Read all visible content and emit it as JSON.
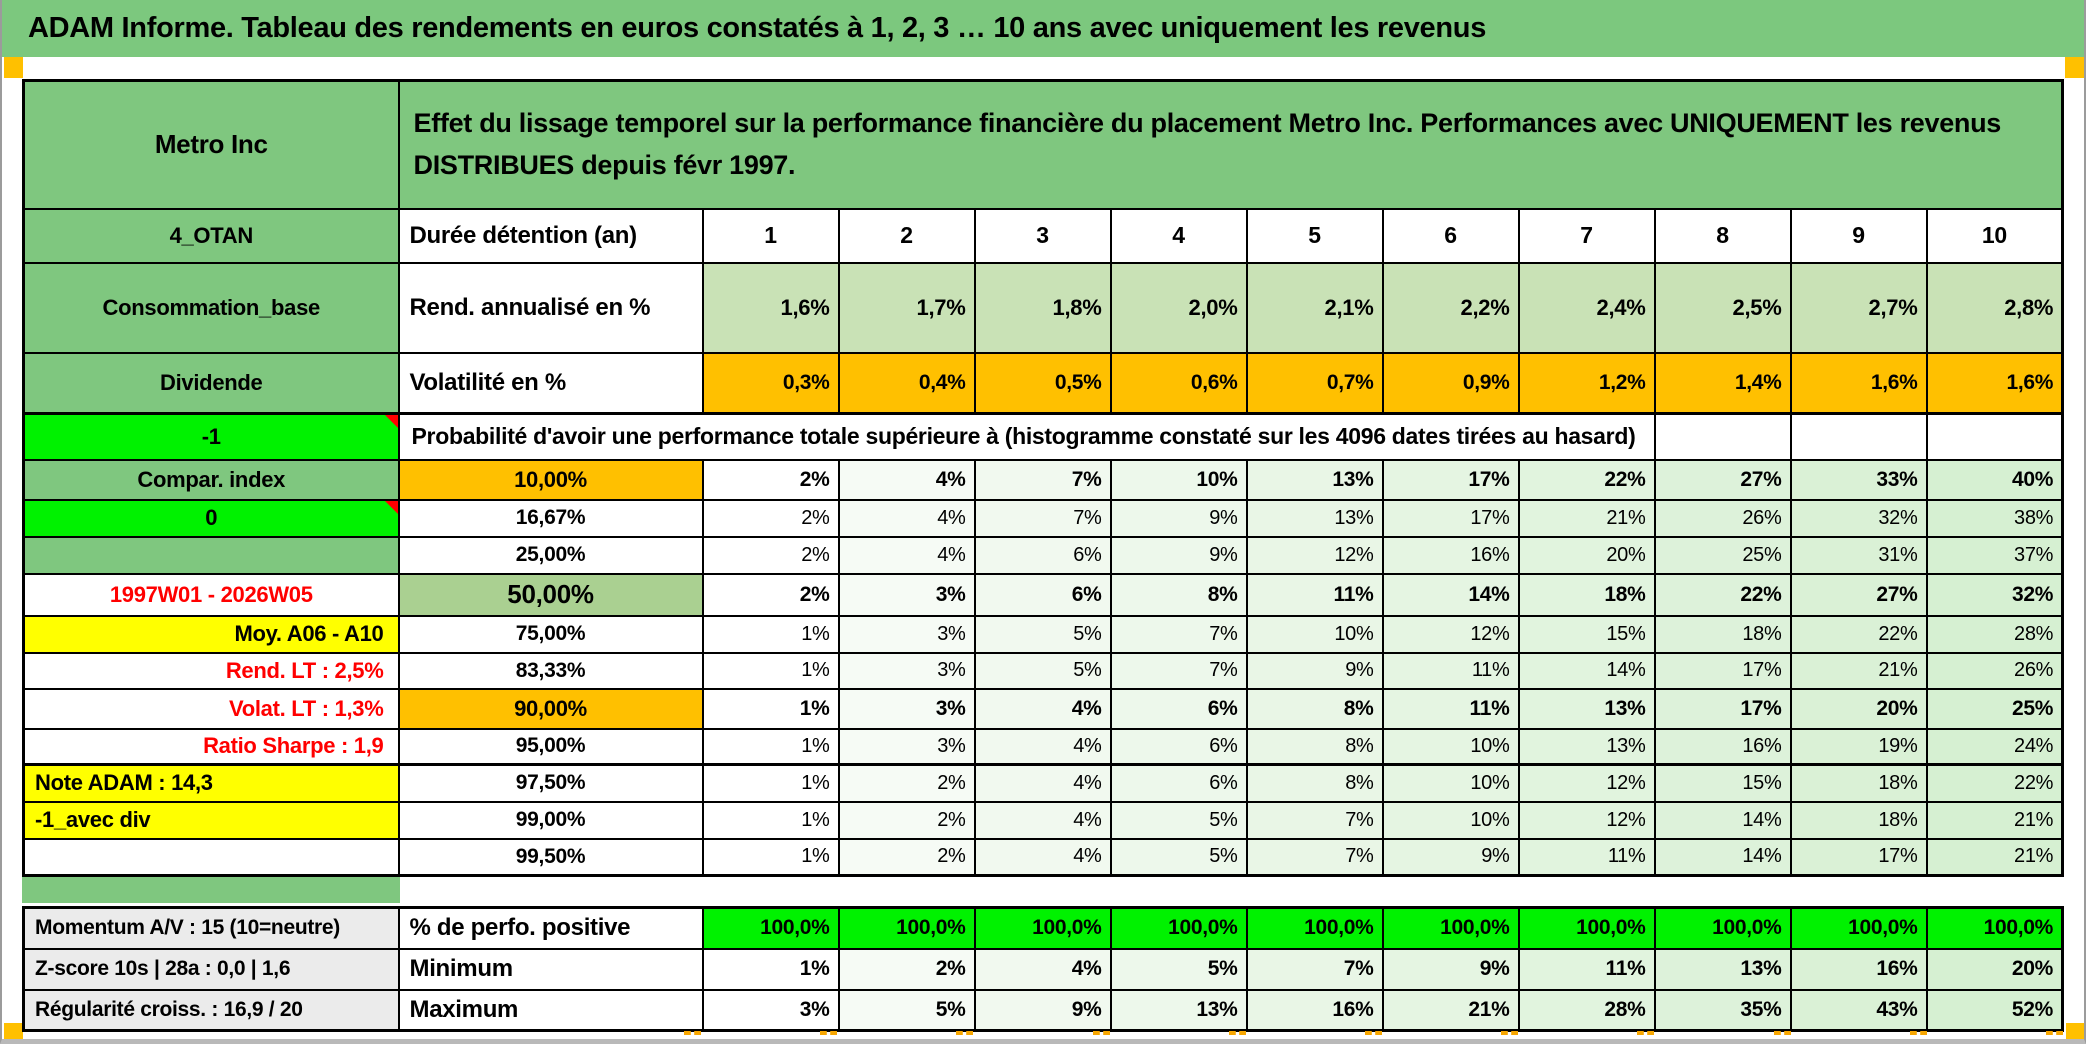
{
  "banner": {
    "title": "ADAM Informe. Tableau des rendements en euros constatés à 1, 2, 3 … 10 ans avec uniquement les revenus"
  },
  "main_table": {
    "company": "Metro Inc",
    "description": "Effet du lissage temporel sur la performance financière du placement Metro Inc. Performances avec UNIQUEMENT les revenus DISTRIBUES depuis févr 1997.",
    "years_row": {
      "label_a": "4_OTAN",
      "label_b": "Durée détention (an)",
      "years": [
        "1",
        "2",
        "3",
        "4",
        "5",
        "6",
        "7",
        "8",
        "9",
        "10"
      ]
    },
    "annualized_return_row": {
      "label_a": "Consommation_base",
      "label_b": "Rend. annualisé en %",
      "values": [
        "1,6%",
        "1,7%",
        "1,8%",
        "2,0%",
        "2,1%",
        "2,2%",
        "2,4%",
        "2,5%",
        "2,7%",
        "2,8%"
      ]
    },
    "volatility_row": {
      "label_a": "Dividende",
      "label_b": "Volatilité en %",
      "values": [
        "0,3%",
        "0,4%",
        "0,5%",
        "0,6%",
        "0,7%",
        "0,9%",
        "1,2%",
        "1,4%",
        "1,6%",
        "1,6%"
      ]
    },
    "probability_header_row": {
      "label_a": "-1",
      "note": "Probabilité d'avoir une performance totale supérieure à (histogramme constaté sur les 4096 dates tirées au hasard)"
    },
    "quantile_rows": [
      {
        "label_a": "Compar. index",
        "a_style": "a-green",
        "threshold": "10,00%",
        "b_style": "b-orange",
        "bold": true,
        "values": [
          "2%",
          "4%",
          "7%",
          "10%",
          "13%",
          "17%",
          "22%",
          "27%",
          "33%",
          "40%"
        ]
      },
      {
        "label_a": "0",
        "a_style": "a-bright",
        "threshold": "16,67%",
        "b_style": "b-plain",
        "bold": false,
        "values": [
          "2%",
          "4%",
          "7%",
          "9%",
          "13%",
          "17%",
          "21%",
          "26%",
          "32%",
          "38%"
        ]
      },
      {
        "label_a": "",
        "a_style": "a-green",
        "threshold": "25,00%",
        "b_style": "b-plain",
        "bold": false,
        "values": [
          "2%",
          "4%",
          "6%",
          "9%",
          "12%",
          "16%",
          "20%",
          "25%",
          "31%",
          "37%"
        ]
      },
      {
        "label_a": "1997W01 - 2026W05",
        "a_style": "a-white-red",
        "threshold": "50,00%",
        "b_style": "b-olive",
        "bold": true,
        "values": [
          "2%",
          "3%",
          "6%",
          "8%",
          "11%",
          "14%",
          "18%",
          "22%",
          "27%",
          "32%"
        ]
      },
      {
        "label_a": "Moy. A06 - A10",
        "a_style": "a-yellow-right",
        "threshold": "75,00%",
        "b_style": "b-plain",
        "bold": false,
        "values": [
          "1%",
          "3%",
          "5%",
          "7%",
          "10%",
          "12%",
          "15%",
          "18%",
          "22%",
          "28%"
        ]
      },
      {
        "label_a": "Rend. LT :   2,5%",
        "a_style": "a-red-right",
        "threshold": "83,33%",
        "b_style": "b-plain",
        "bold": false,
        "values": [
          "1%",
          "3%",
          "5%",
          "7%",
          "9%",
          "11%",
          "14%",
          "17%",
          "21%",
          "26%"
        ]
      },
      {
        "label_a": "Volat. LT :   1,3%",
        "a_style": "a-red-right",
        "threshold": "90,00%",
        "b_style": "b-orange",
        "bold": true,
        "values": [
          "1%",
          "3%",
          "4%",
          "6%",
          "8%",
          "11%",
          "13%",
          "17%",
          "20%",
          "25%"
        ]
      },
      {
        "label_a": "Ratio Sharpe :   1,9",
        "a_style": "a-red-right",
        "threshold": "95,00%",
        "b_style": "b-plain",
        "bold": false,
        "values": [
          "1%",
          "3%",
          "4%",
          "6%",
          "8%",
          "10%",
          "13%",
          "16%",
          "19%",
          "24%"
        ]
      },
      {
        "label_a": "Note ADAM : 14,3",
        "a_style": "a-yellow-left",
        "threshold": "97,50%",
        "b_style": "b-plain",
        "bold": false,
        "values": [
          "1%",
          "2%",
          "4%",
          "6%",
          "8%",
          "10%",
          "12%",
          "15%",
          "18%",
          "22%"
        ]
      },
      {
        "label_a": "-1_avec div",
        "a_style": "a-yellow-left",
        "threshold": "99,00%",
        "b_style": "b-plain",
        "bold": false,
        "values": [
          "1%",
          "2%",
          "4%",
          "5%",
          "7%",
          "10%",
          "12%",
          "14%",
          "18%",
          "21%"
        ]
      },
      {
        "label_a": "",
        "a_style": "a-white",
        "threshold": "99,50%",
        "b_style": "b-plain",
        "bold": false,
        "values": [
          "1%",
          "2%",
          "4%",
          "5%",
          "7%",
          "9%",
          "11%",
          "14%",
          "17%",
          "21%"
        ]
      }
    ]
  },
  "summary_table": {
    "rows": [
      {
        "label_a": "Momentum A/V : 15 (10=neutre)",
        "label_b": "% de perfo. positive",
        "kind": "positive",
        "values": [
          "100,0%",
          "100,0%",
          "100,0%",
          "100,0%",
          "100,0%",
          "100,0%",
          "100,0%",
          "100,0%",
          "100,0%",
          "100,0%"
        ]
      },
      {
        "label_a": "Z-score 10s | 28a : 0,0 | 1,6",
        "label_b": "Minimum",
        "kind": "minimum",
        "values": [
          "1%",
          "2%",
          "4%",
          "5%",
          "7%",
          "9%",
          "11%",
          "13%",
          "16%",
          "20%"
        ]
      },
      {
        "label_a": "Régularité croiss. : 16,9 / 20",
        "label_b": "Maximum",
        "kind": "maximum",
        "values": [
          "3%",
          "5%",
          "9%",
          "13%",
          "16%",
          "21%",
          "28%",
          "35%",
          "43%",
          "52%"
        ]
      }
    ]
  },
  "colors": {
    "banner_green": "#7cc87e",
    "label_green": "#7fc77f",
    "bright_green": "#00f200",
    "orange": "#ffc000",
    "yellow": "#ffff00",
    "light_green_cells": "#c9e2b6",
    "olive_cell": "#aad091",
    "red_text": "#ff0000",
    "gray_label": "#ebebeb"
  }
}
